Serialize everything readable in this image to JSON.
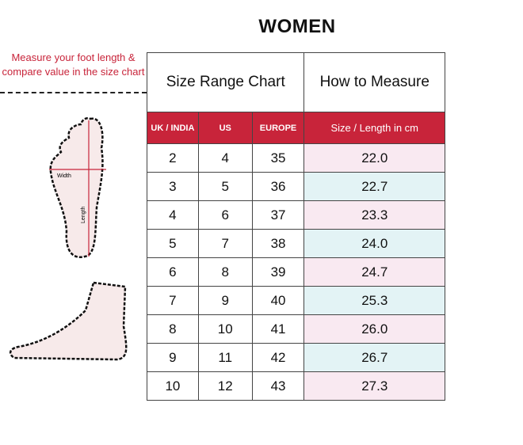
{
  "title": "WOMEN",
  "note": "Measure your foot length & compare value in the size chart",
  "diagram": {
    "width_label": "Width",
    "length_label": "Length"
  },
  "table": {
    "size_range_title": "Size Range Chart",
    "how_to_title": "How to Measure",
    "columns": [
      "UK / INDIA",
      "US",
      "EUROPE",
      "Size / Length in cm"
    ],
    "rows": [
      [
        "2",
        "4",
        "35",
        "22.0"
      ],
      [
        "3",
        "5",
        "36",
        "22.7"
      ],
      [
        "4",
        "6",
        "37",
        "23.3"
      ],
      [
        "5",
        "7",
        "38",
        "24.0"
      ],
      [
        "6",
        "8",
        "39",
        "24.7"
      ],
      [
        "7",
        "9",
        "40",
        "25.3"
      ],
      [
        "8",
        "10",
        "41",
        "26.0"
      ],
      [
        "9",
        "11",
        "42",
        "26.7"
      ],
      [
        "10",
        "12",
        "43",
        "27.3"
      ]
    ]
  },
  "colors": {
    "accent": "#c8243a",
    "pink": "#f9e9f1",
    "blue": "#e3f3f5"
  }
}
